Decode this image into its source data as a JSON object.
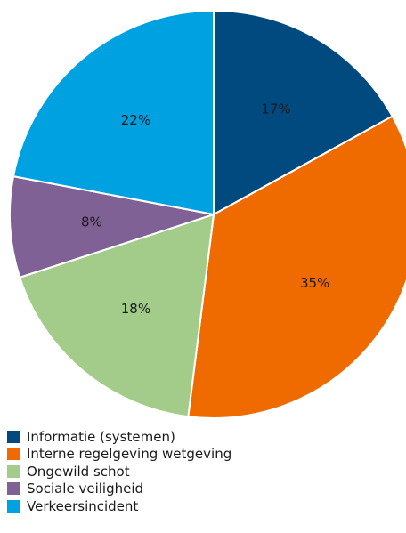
{
  "chart_data": {
    "type": "pie",
    "start_angle": "top",
    "direction": "clockwise",
    "legend_position": "bottom-left",
    "slices": [
      {
        "label": "Informatie (systemen)",
        "value": 17,
        "value_label": "17%",
        "color": "#004a80"
      },
      {
        "label": "Interne regelgeving wetgeving",
        "value": 35,
        "value_label": "35%",
        "color": "#ef6b00"
      },
      {
        "label": "Ongewild schot",
        "value": 18,
        "value_label": "18%",
        "color": "#a3cc8b"
      },
      {
        "label": "Sociale veiligheid",
        "value": 8,
        "value_label": "8%",
        "color": "#7f6196"
      },
      {
        "label": "Verkeersincident",
        "value": 22,
        "value_label": "22%",
        "color": "#00a1e1"
      }
    ]
  }
}
